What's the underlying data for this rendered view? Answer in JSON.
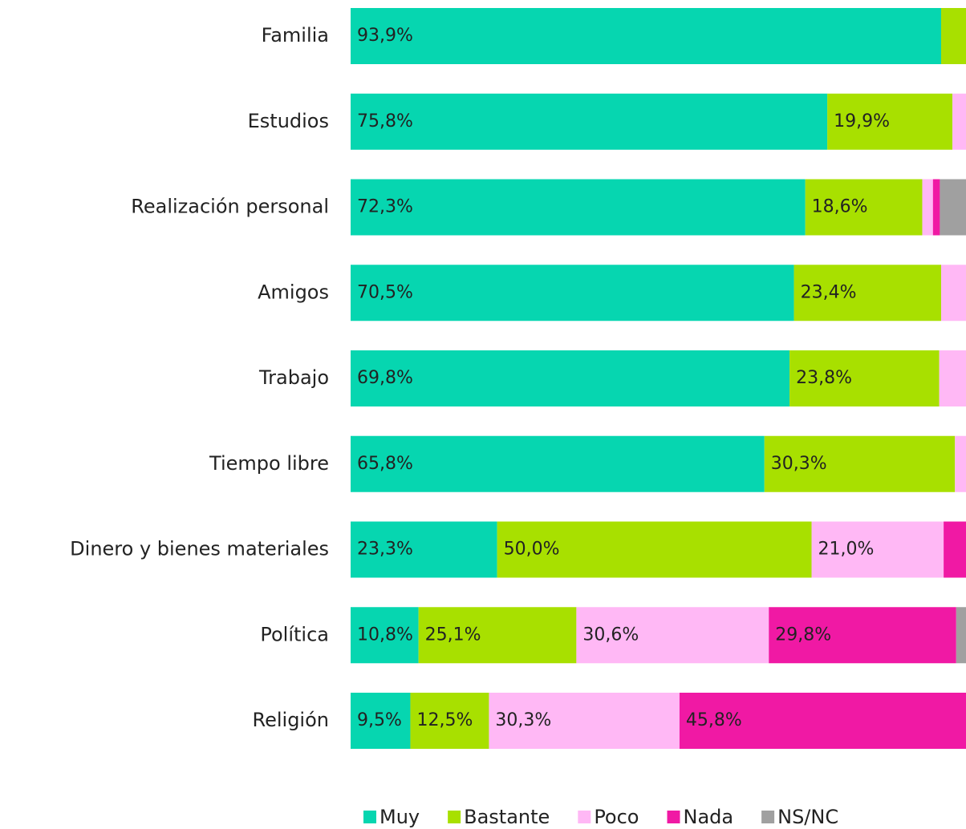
{
  "chart_data": {
    "type": "stacked-barh",
    "categories": [
      "Familia",
      "Estudios",
      "Realización personal",
      "Amigos",
      "Trabajo",
      "Tiempo libre",
      "Dinero y bienes materiales",
      "Política",
      "Religión"
    ],
    "xlim": [
      0,
      100
    ],
    "series": [
      {
        "name": "Muy",
        "color": "#06d6b0",
        "values": [
          93.9,
          75.8,
          72.3,
          70.5,
          69.8,
          65.8,
          23.3,
          10.8,
          9.5
        ],
        "value_labels": [
          "93,9%",
          "75,8%",
          "72,3%",
          "70,5%",
          "69,8%",
          "65,8%",
          "23,3%",
          "10,8%",
          "9,5%"
        ]
      },
      {
        "name": "Bastante",
        "color": "#a8e000",
        "values": [
          5.1,
          19.9,
          18.6,
          23.4,
          23.8,
          30.3,
          50.0,
          25.1,
          12.5
        ],
        "value_labels": [
          null,
          "19,9%",
          "18,6%",
          "23,4%",
          "23,8%",
          "30,3%",
          "50,0%",
          "25,1%",
          "12,5%"
        ]
      },
      {
        "name": "Poco",
        "color": "#ffb8f5",
        "values": [
          0.6,
          3.3,
          1.7,
          4.8,
          4.5,
          3.0,
          21.0,
          30.6,
          30.3
        ],
        "value_labels": [
          null,
          null,
          null,
          null,
          null,
          null,
          "21,0%",
          "30,6%",
          "30,3%"
        ]
      },
      {
        "name": "Nada",
        "color": "#f019a4",
        "values": [
          0.2,
          0.6,
          1.1,
          0.8,
          1.2,
          0.6,
          4.8,
          29.8,
          45.8
        ],
        "value_labels": [
          null,
          null,
          null,
          null,
          null,
          null,
          null,
          "29,8%",
          "45,8%"
        ]
      },
      {
        "name": "NS/NC",
        "color": "#a0a0a0",
        "values": [
          0.2,
          0.4,
          6.3,
          0.5,
          0.7,
          0.3,
          0.9,
          3.7,
          1.9
        ],
        "value_labels": [
          null,
          null,
          null,
          null,
          null,
          null,
          null,
          null,
          null
        ]
      }
    ]
  }
}
